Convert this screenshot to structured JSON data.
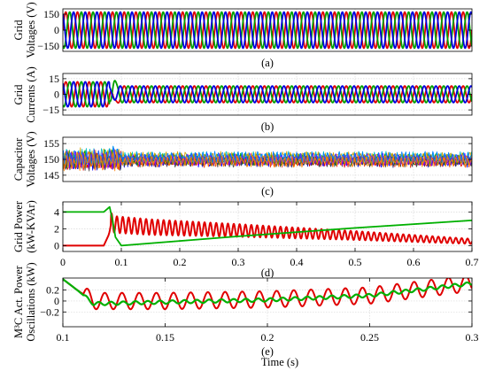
{
  "figure": {
    "xlabel": "Time (s)"
  },
  "chart_data": [
    {
      "id": "a",
      "type": "line",
      "caption": "(a)",
      "ylabel_lines": [
        "Grid",
        "Voltages (V)"
      ],
      "xlim": [
        0,
        0.7
      ],
      "ylim": [
        -200,
        200
      ],
      "yticks": [
        150,
        0,
        -150
      ],
      "ytick_labels": [
        "150",
        "0",
        "−150"
      ],
      "xticks": [],
      "grid": true,
      "series": [
        {
          "color": "#e00000",
          "description": "phase A, amplitude ~170 V, ~50 Hz"
        },
        {
          "color": "#00a000",
          "description": "phase B, amplitude ~170 V, ~50 Hz"
        },
        {
          "color": "#0000e0",
          "description": "phase C, amplitude ~170 V, ~50 Hz"
        }
      ]
    },
    {
      "id": "b",
      "type": "line",
      "caption": "(b)",
      "ylabel_lines": [
        "Grid",
        "Currents (A)"
      ],
      "xlim": [
        0,
        0.7
      ],
      "ylim": [
        -20,
        20
      ],
      "yticks": [
        15,
        0,
        -15
      ],
      "ytick_labels": [
        "15",
        "0",
        "−15"
      ],
      "xticks": [],
      "grid": true,
      "series": [
        {
          "color": "#e00000",
          "description": "three-phase current, amplitude ~12 A before 0.08 s, ~8 A after"
        },
        {
          "color": "#00a000",
          "description": "transient spike to ~18 A at ~0.085 s"
        },
        {
          "color": "#0000e0",
          "description": "three-phase current"
        }
      ]
    },
    {
      "id": "c",
      "type": "line",
      "caption": "(c)",
      "ylabel_lines": [
        "Capacitor",
        "Voltages (V)"
      ],
      "xlim": [
        0,
        0.7
      ],
      "ylim": [
        143,
        157
      ],
      "yticks": [
        155,
        150,
        145
      ],
      "ytick_labels": [
        "155",
        "150",
        "145"
      ],
      "xticks": [],
      "grid": true,
      "note": "many capacitor voltages oscillating around 150 V, spread about ±4 V"
    },
    {
      "id": "d",
      "type": "line",
      "caption": "(d)",
      "ylabel_lines": [
        "Grid Power",
        "(kW-KVAr)"
      ],
      "xlim": [
        0,
        0.7
      ],
      "ylim": [
        -0.7,
        5.2
      ],
      "yticks": [
        4,
        2,
        0
      ],
      "ytick_labels": [
        "4",
        "2",
        "0"
      ],
      "xticks": [
        0,
        0.1,
        0.2,
        0.3,
        0.4,
        0.5,
        0.6,
        0.7
      ],
      "xtick_labels": [
        "0",
        "0.1",
        "0.2",
        "0.3",
        "0.4",
        "0.5",
        "0.6",
        "0.7"
      ],
      "grid": true,
      "series": [
        {
          "color": "#00b000",
          "x": [
            0,
            0.07,
            0.08,
            0.085,
            0.09,
            0.1,
            0.2,
            0.3,
            0.4,
            0.5,
            0.6,
            0.7
          ],
          "y": [
            4.0,
            4.0,
            4.6,
            3.0,
            1.0,
            0.0,
            0.55,
            1.1,
            1.6,
            2.1,
            2.55,
            3.0
          ]
        },
        {
          "color": "#e00000",
          "x": [
            0,
            0.07,
            0.08,
            0.09,
            0.15,
            0.3,
            0.5,
            0.7
          ],
          "y": [
            0.0,
            0.0,
            1.5,
            2.5,
            2.2,
            1.8,
            1.2,
            0.5
          ],
          "oscillation_amplitude": [
            1.0,
            0.3
          ],
          "description": "oscillating about a decaying mean"
        }
      ]
    },
    {
      "id": "e",
      "type": "line",
      "caption": "(e)",
      "ylabel_lines": [
        "M³C Act. Power",
        "Oscillations (kW)"
      ],
      "xlim": [
        0.1,
        0.3
      ],
      "ylim": [
        -0.47,
        0.42
      ],
      "yticks": [
        0.2,
        0,
        -0.2
      ],
      "ytick_labels": [
        "0.2",
        "0",
        "−0.2"
      ],
      "xticks": [
        0.1,
        0.15,
        0.2,
        0.25,
        0.3
      ],
      "xtick_labels": [
        "0.1",
        "0.15",
        "0.2",
        "0.25",
        "0.3"
      ],
      "grid": true,
      "series": [
        {
          "color": "#e00000",
          "x": [
            0.1,
            0.107,
            0.115,
            0.15,
            0.2,
            0.25,
            0.3
          ],
          "y": [
            0.4,
            0.2,
            0.0,
            0.0,
            0.03,
            0.1,
            0.33
          ],
          "oscillation_amplitude": 0.15,
          "oscillation_period": 0.0084
        },
        {
          "color": "#00b000",
          "x": [
            0.1,
            0.107,
            0.115,
            0.15,
            0.2,
            0.25,
            0.3
          ],
          "y": [
            0.4,
            0.2,
            -0.05,
            -0.02,
            0.02,
            0.1,
            0.32
          ],
          "oscillation_amplitude": 0.03,
          "oscillation_period": 0.006
        }
      ]
    }
  ]
}
